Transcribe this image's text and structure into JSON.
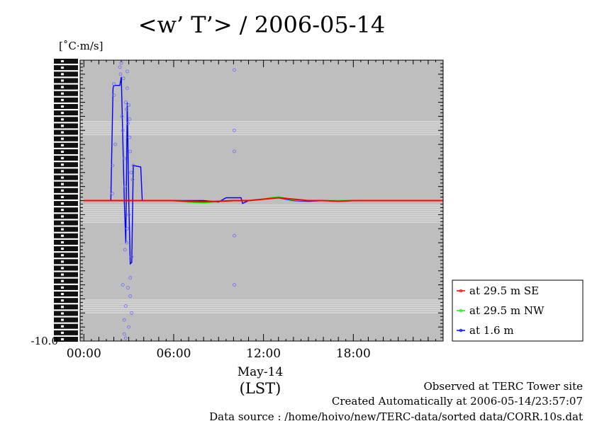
{
  "chart_data": {
    "type": "line",
    "title": "<w’ T’> / 2006-05-14",
    "ylabel": "[˚C·m/s]",
    "xlabel_date": "May-14",
    "xlabel_unit": "(LST)",
    "x_ticks": [
      "00:00",
      "06:00",
      "12:00",
      "18:00"
    ],
    "x_tick_hours": [
      0,
      6,
      12,
      18
    ],
    "xlim_hours": [
      -0.25,
      24
    ],
    "ylim": [
      -10.0,
      10.0
    ],
    "y_label_bottom": "-10.0",
    "grid": false,
    "legend_position": "right",
    "series": [
      {
        "name": "at 29.5 m SE",
        "color": "#ff0000",
        "x": [
          0,
          2,
          4,
          6,
          7,
          8,
          9,
          10,
          11,
          12,
          13,
          14,
          15,
          16,
          17,
          18,
          20,
          22,
          24
        ],
        "y": [
          0.0,
          0.0,
          0.0,
          0.0,
          -0.05,
          -0.08,
          -0.05,
          0.0,
          0.0,
          0.1,
          0.2,
          0.1,
          0.0,
          0.0,
          -0.05,
          0.0,
          0.0,
          0.0,
          0.0
        ]
      },
      {
        "name": "at 29.5 m NW",
        "color": "#00ff00",
        "x": [
          0,
          2,
          4,
          6,
          7,
          8,
          9,
          10,
          11,
          12,
          12.5,
          13,
          13.5,
          14,
          15,
          16,
          18,
          20,
          22,
          24
        ],
        "y": [
          0.0,
          0.0,
          0.0,
          0.0,
          -0.1,
          -0.15,
          -0.05,
          0.0,
          0.0,
          0.1,
          0.2,
          0.25,
          0.15,
          0.05,
          0.0,
          0.0,
          0.0,
          0.0,
          0.0,
          0.0
        ]
      },
      {
        "name": "at 1.6 m",
        "color": "#0000ff",
        "x": [
          0,
          1.8,
          1.95,
          2.0,
          2.4,
          2.5,
          2.7,
          2.8,
          2.9,
          3.0,
          3.1,
          3.2,
          3.3,
          3.8,
          3.9,
          4.5,
          6,
          8,
          9,
          9.5,
          10.5,
          10.6,
          11,
          12,
          13,
          14,
          15,
          16,
          18,
          20,
          22,
          24
        ],
        "y": [
          0.0,
          0.0,
          8.0,
          8.2,
          8.2,
          8.8,
          0.0,
          -3.0,
          7.0,
          0.0,
          -4.5,
          -4.4,
          2.5,
          2.4,
          0.0,
          0.0,
          0.0,
          0.0,
          -0.1,
          0.2,
          0.2,
          -0.2,
          0.0,
          0.1,
          0.2,
          0.0,
          -0.05,
          0.0,
          0.0,
          0.0,
          0.0,
          0.0
        ]
      }
    ],
    "scatter_points": {
      "series": "at 1.6 m",
      "x": [
        1.9,
        1.9,
        2.0,
        2.0,
        2.1,
        2.4,
        2.45,
        2.5,
        2.55,
        2.6,
        2.6,
        2.65,
        2.7,
        2.7,
        2.75,
        2.8,
        2.8,
        2.85,
        2.9,
        2.9,
        2.95,
        3.0,
        3.0,
        3.05,
        3.1,
        3.1,
        3.15,
        3.2,
        3.2,
        3.25,
        3.3,
        2.7,
        2.8,
        2.9,
        3.0,
        3.1,
        2.75,
        2.85,
        2.95,
        3.05,
        10.05,
        10.05,
        10.05,
        10.05,
        10.05
      ],
      "y": [
        0.5,
        2.5,
        7.5,
        8.3,
        4.0,
        9.5,
        9.0,
        9.8,
        6.0,
        5.0,
        -6.0,
        8.7,
        -8.5,
        3.0,
        -3.5,
        7.0,
        -7.5,
        6.5,
        8.0,
        -2.0,
        5.5,
        -9.0,
        -1.0,
        4.5,
        -5.5,
        3.5,
        2.0,
        -4.0,
        -8.0,
        1.5,
        2.5,
        -9.5,
        -9.8,
        9.2,
        6.8,
        -6.8,
        1.0,
        -3.0,
        -6.2,
        5.8,
        9.3,
        5.0,
        3.5,
        -2.5,
        -6.0
      ]
    }
  },
  "footer": {
    "line1": "Observed at TERC Tower site",
    "line2": "Created Automatically at 2006-05-14/23:57:07",
    "line3": "Data source : /home/hoivo/new/TERC-data/sorted  data/CORR.10s.dat"
  }
}
